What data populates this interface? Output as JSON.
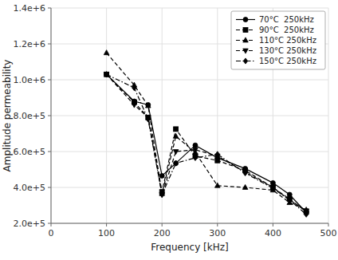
{
  "chart_data": {
    "type": "line",
    "xlabel": "Frequency [kHz]",
    "ylabel": "Amplitude permeability",
    "xlim": [
      0,
      500
    ],
    "ylim": [
      200000,
      1400000
    ],
    "xticks": [
      0,
      100,
      200,
      300,
      400,
      500
    ],
    "yticks": [
      {
        "value": 200000,
        "label": "2.0e+5"
      },
      {
        "value": 400000,
        "label": "4.0e+5"
      },
      {
        "value": 600000,
        "label": "6.0e+5"
      },
      {
        "value": 800000,
        "label": "8.0e+5"
      },
      {
        "value": 1000000,
        "label": "1.0e+6"
      },
      {
        "value": 1200000,
        "label": "1.2e+6"
      },
      {
        "value": 1400000,
        "label": "1.4e+6"
      }
    ],
    "grid": true,
    "legend": "upper-right",
    "series": [
      {
        "name": "70°C  250kHz",
        "color": "#000000",
        "marker": "circle",
        "line_style": "solid",
        "x": [
          100,
          150,
          175,
          200,
          225,
          260,
          300,
          350,
          400,
          430,
          460
        ],
        "values": [
          1030000,
          880000,
          860000,
          465000,
          535000,
          635000,
          565000,
          505000,
          425000,
          360000,
          260000
        ]
      },
      {
        "name": "90°C  250kHz",
        "color": "#000000",
        "marker": "square",
        "line_style": "dashed",
        "x": [
          100,
          150,
          175,
          200,
          225,
          260,
          300,
          350,
          400,
          430,
          460
        ],
        "values": [
          1030000,
          875000,
          790000,
          375000,
          725000,
          575000,
          550000,
          495000,
          400000,
          335000,
          265000
        ]
      },
      {
        "name": "110°C 250kHz",
        "color": "#000000",
        "marker": "triangle-up",
        "line_style": "dashed",
        "x": [
          100,
          150,
          175,
          200,
          225,
          260,
          300,
          350,
          400,
          430,
          460
        ],
        "values": [
          1150000,
          970000,
          855000,
          365000,
          685000,
          595000,
          410000,
          400000,
          385000,
          315000,
          275000
        ]
      },
      {
        "name": "130°C 250kHz",
        "color": "#000000",
        "marker": "triangle-down",
        "line_style": "dashed",
        "x": [
          100,
          150,
          175,
          200,
          225,
          260,
          300,
          350,
          400,
          430,
          460
        ],
        "values": [
          1030000,
          860000,
          790000,
          360000,
          600000,
          610000,
          575000,
          485000,
          400000,
          330000,
          270000
        ]
      },
      {
        "name": "150°C 250kHz",
        "color": "#000000",
        "marker": "diamond",
        "line_style": "dashdot",
        "x": [
          100,
          150,
          175,
          200,
          225,
          260,
          300,
          350,
          400,
          430,
          460
        ],
        "values": [
          1030000,
          955000,
          780000,
          360000,
          535000,
          565000,
          585000,
          480000,
          395000,
          330000,
          250000
        ]
      }
    ]
  }
}
